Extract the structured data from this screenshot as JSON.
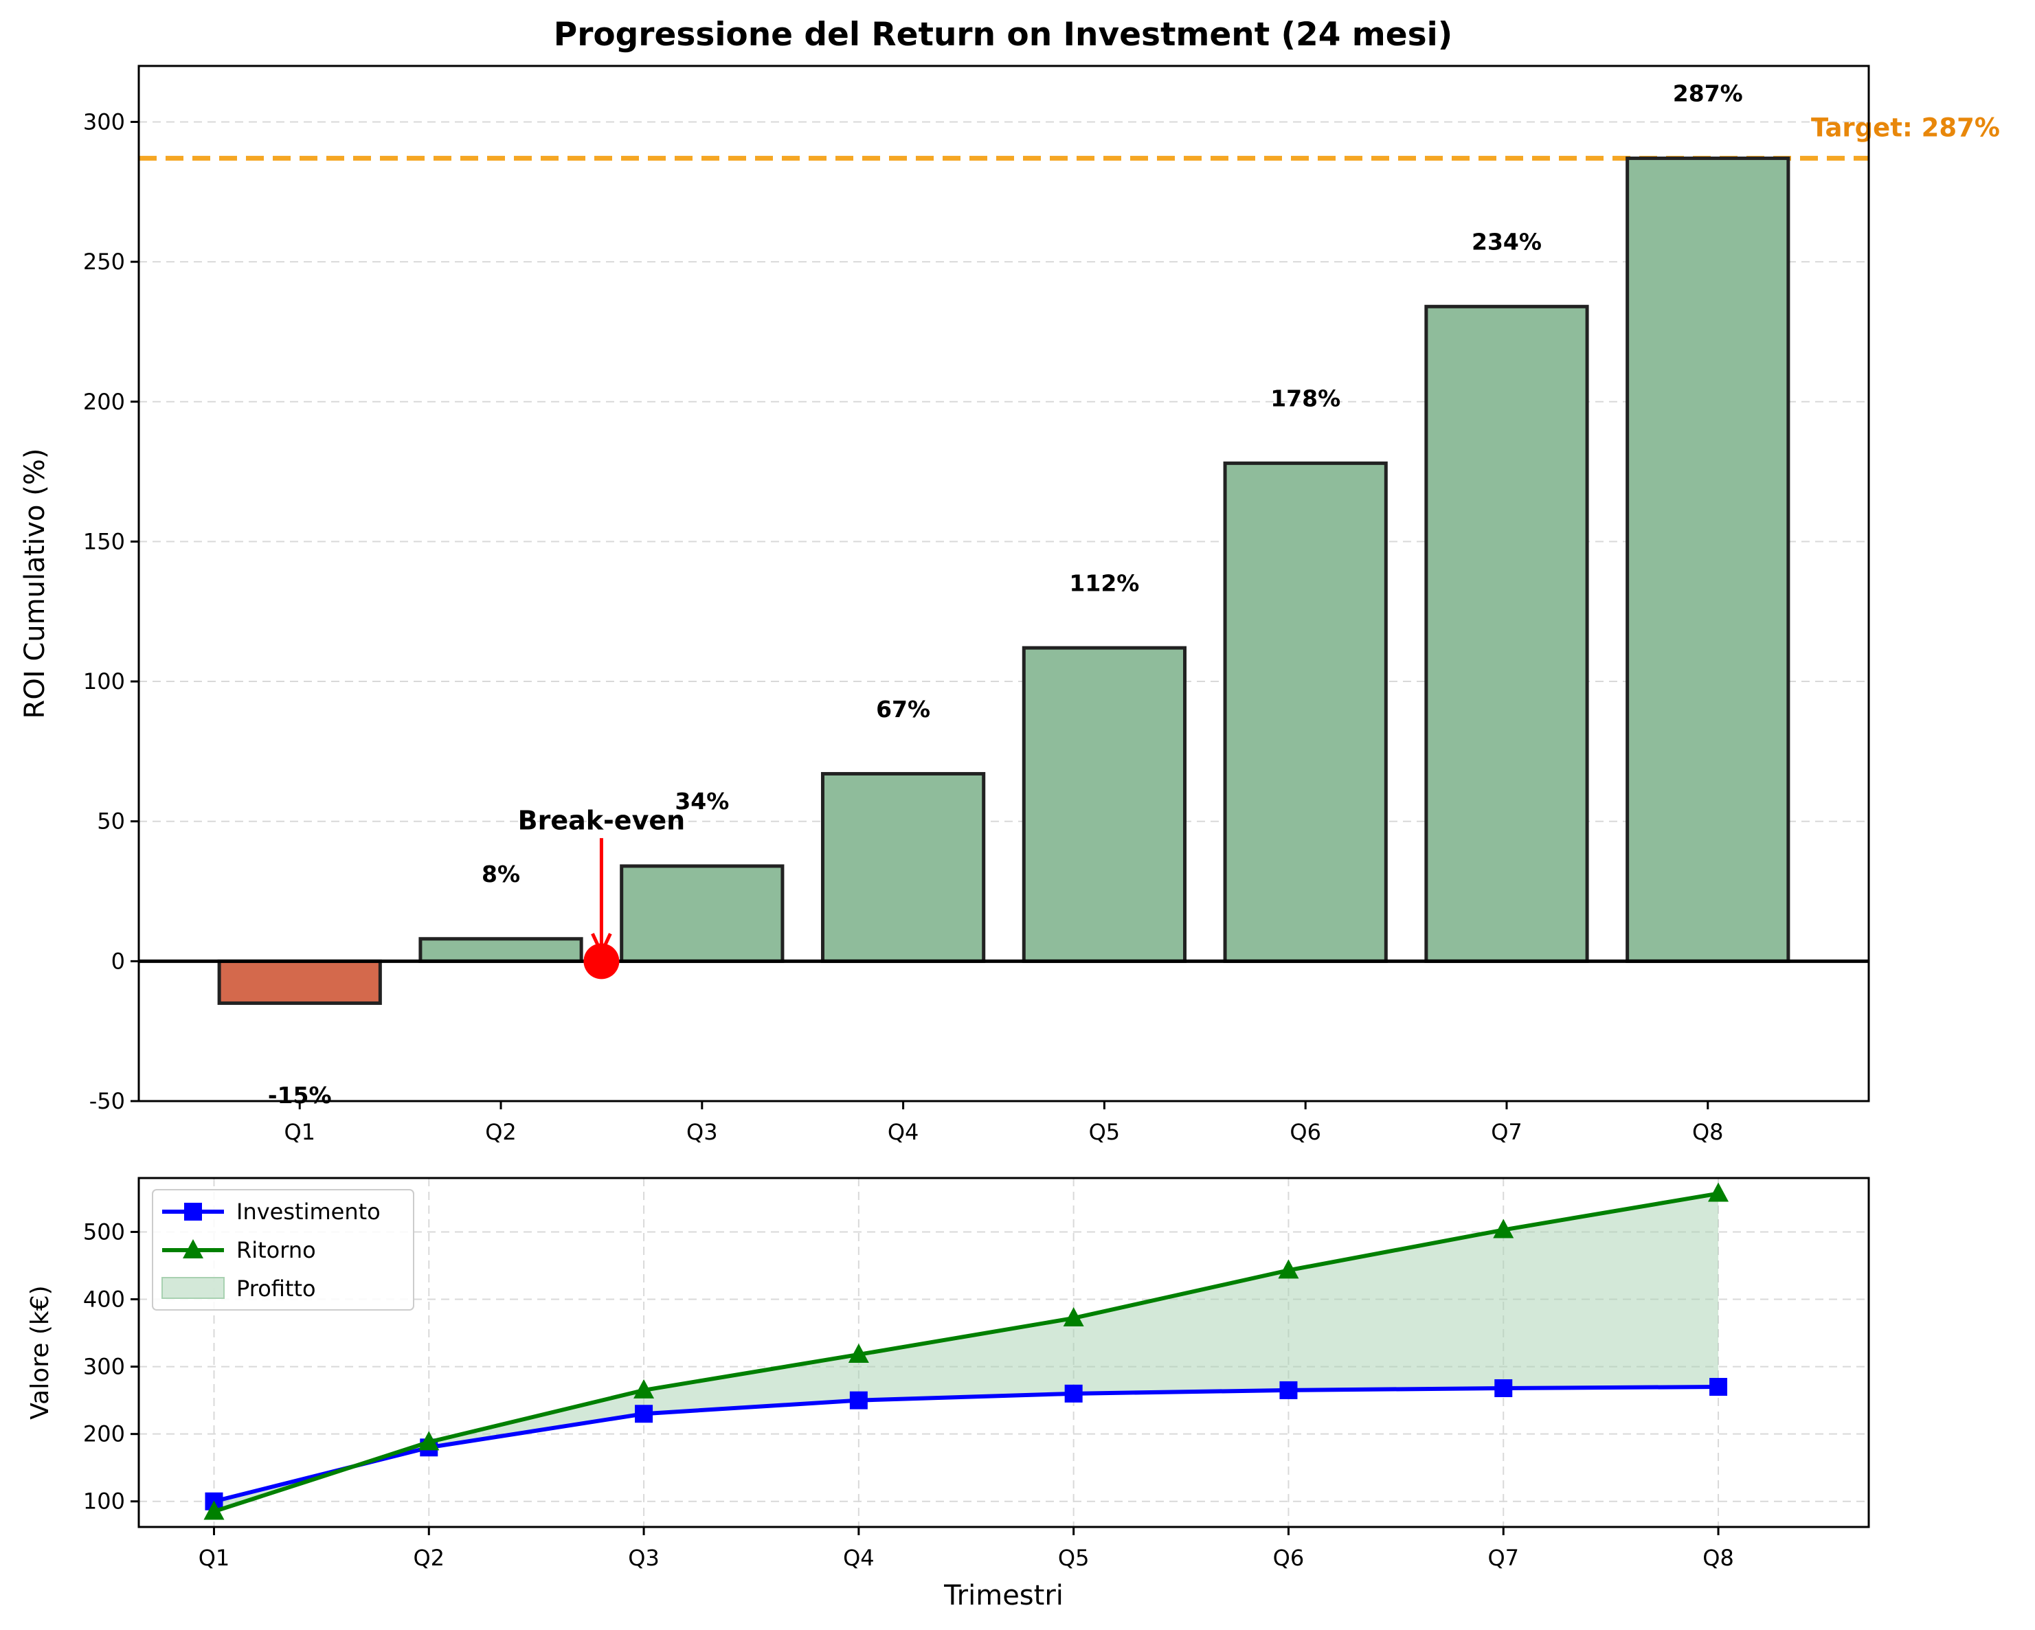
{
  "chart_data": [
    {
      "type": "bar",
      "title": "Progressione del Return on Investment (24 mesi)",
      "xlabel": "",
      "ylabel": "ROI Cumulativo (%)",
      "categories": [
        "Q1",
        "Q2",
        "Q3",
        "Q4",
        "Q5",
        "Q6",
        "Q7",
        "Q8"
      ],
      "values": [
        -15,
        8,
        34,
        67,
        112,
        178,
        234,
        287
      ],
      "data_labels": [
        "-15%",
        "8%",
        "34%",
        "67%",
        "112%",
        "178%",
        "234%",
        "287%"
      ],
      "ylim": [
        -50,
        320
      ],
      "yticks": [
        -50,
        0,
        50,
        100,
        150,
        200,
        250,
        300
      ],
      "grid": "y",
      "colors": {
        "negative": "#d4694c",
        "positive": "#8fbc9b",
        "edge": "#222222",
        "target": "#f5a623",
        "target_text": "#e8870a",
        "breakeven": "#ff0000"
      },
      "target": {
        "value": 287,
        "label": "Target: 287%"
      },
      "annotation": {
        "text": "Break-even",
        "x_between": [
          "Q2",
          "Q3"
        ],
        "y": 0
      }
    },
    {
      "type": "line",
      "title": "",
      "xlabel": "Trimestri",
      "ylabel": "Valore (k€)",
      "categories": [
        "Q1",
        "Q2",
        "Q3",
        "Q4",
        "Q5",
        "Q6",
        "Q7",
        "Q8"
      ],
      "ylim": [
        62,
        580
      ],
      "yticks": [
        100,
        200,
        300,
        400,
        500
      ],
      "grid": "both",
      "legend_position": "top-left",
      "series": [
        {
          "name": "Investimento",
          "values": [
            100,
            180,
            230,
            250,
            260,
            265,
            268,
            270
          ],
          "color": "#0000ff",
          "marker": "square"
        },
        {
          "name": "Ritorno",
          "values": [
            85,
            188,
            265,
            318,
            372,
            443,
            503,
            557
          ],
          "color": "#008000",
          "marker": "triangle"
        }
      ],
      "fill": {
        "name": "Profitto",
        "between": [
          "Investimento",
          "Ritorno"
        ],
        "color": "#a8d1b1"
      }
    }
  ]
}
